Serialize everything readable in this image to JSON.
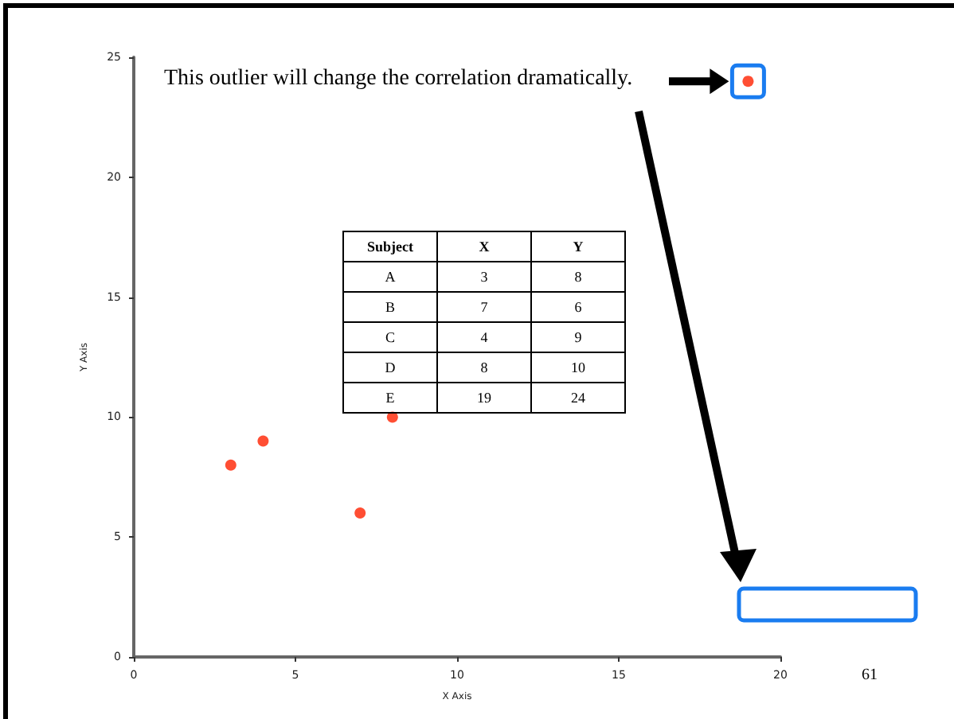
{
  "chart_data": {
    "type": "scatter",
    "xlabel": "X Axis",
    "ylabel": "Y Axis",
    "x": [
      3,
      7,
      4,
      8,
      19
    ],
    "values": [
      8,
      6,
      9,
      10,
      24
    ],
    "color": "#ff2200",
    "marker": "circle",
    "grid": false,
    "xlim": [
      0,
      20
    ],
    "xticks": [
      0,
      5,
      10,
      15,
      20
    ],
    "ylim": [
      0,
      25
    ],
    "yticks": [
      0,
      5,
      10,
      15,
      20,
      25
    ],
    "annotations": [
      "This outlier will change the correlation dramatically.",
      "Subject",
      "X",
      "Y",
      "A",
      "3",
      "8",
      "B",
      "7",
      "6",
      "C",
      "4",
      "9",
      "D",
      "8",
      "10",
      "E",
      "19",
      "24",
      "61"
    ]
  }
}
